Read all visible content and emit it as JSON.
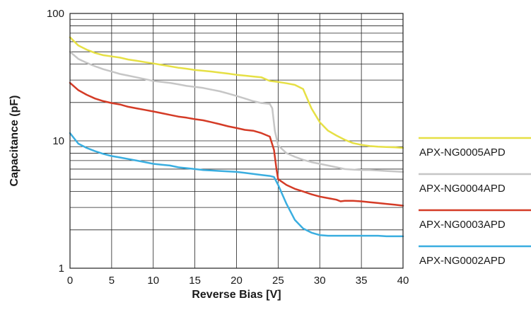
{
  "chart_data": {
    "type": "line",
    "xlabel": "Reverse Bias [V]",
    "ylabel": "Capacitance (pF)",
    "xlim": [
      0,
      40
    ],
    "ylim": [
      1,
      100
    ],
    "yscale": "log",
    "xticks": [
      0,
      5,
      10,
      15,
      20,
      25,
      30,
      35,
      40
    ],
    "xtick_labels": [
      "0",
      "5",
      "10",
      "15",
      "20",
      "25",
      "30",
      "35",
      "40"
    ],
    "ytick_labels": [
      "1",
      "10",
      "100"
    ],
    "grid": true,
    "legend_position": "right",
    "series": [
      {
        "name": "APX-NG0005APD",
        "color": "#e6e045",
        "x": [
          0,
          1,
          2,
          3,
          4,
          5,
          6,
          7,
          8,
          9,
          10,
          11,
          12,
          13,
          14,
          15,
          16,
          17,
          18,
          19,
          20,
          21,
          22,
          23,
          24,
          25,
          26,
          27,
          28,
          29,
          30,
          31,
          32,
          33,
          34,
          35,
          36,
          37,
          38,
          39,
          40
        ],
        "y": [
          65,
          56,
          52,
          49,
          47,
          46,
          45,
          43.5,
          42.5,
          41.5,
          40.5,
          39.5,
          38.5,
          37.5,
          36.8,
          36,
          35.5,
          35,
          34.3,
          33.7,
          33,
          32.5,
          32,
          31.5,
          29.5,
          29,
          28.3,
          27.5,
          25.5,
          18,
          14,
          12,
          11,
          10.2,
          9.6,
          9.3,
          9.1,
          9.0,
          8.95,
          8.9,
          8.8
        ]
      },
      {
        "name": "APX-NG0004APD",
        "color": "#c6c6c6",
        "x": [
          0,
          1,
          2,
          3,
          4,
          5,
          6,
          7,
          8,
          9,
          10,
          11,
          12,
          13,
          14,
          15,
          16,
          17,
          18,
          19,
          20,
          21,
          22,
          23,
          24,
          24.3,
          24.6,
          25,
          26,
          27,
          28,
          29,
          30,
          31,
          32,
          33,
          34,
          35,
          36,
          37,
          38,
          39,
          40
        ],
        "y": [
          50,
          44,
          41,
          38.5,
          36.5,
          35,
          33.5,
          32.5,
          31.5,
          30.5,
          29.5,
          29,
          28.5,
          27.8,
          27,
          26.5,
          26,
          25.2,
          24.5,
          23.5,
          22.5,
          21.5,
          20.5,
          19.8,
          19.5,
          18,
          12,
          9.2,
          8.0,
          7.5,
          7.1,
          6.8,
          6.6,
          6.4,
          6.2,
          6.0,
          5.95,
          5.9,
          5.9,
          5.85,
          5.8,
          5.75,
          5.7
        ]
      },
      {
        "name": "APX-NG0003APD",
        "color": "#d43b26",
        "x": [
          0,
          1,
          2,
          3,
          4,
          5,
          6,
          7,
          8,
          9,
          10,
          11,
          12,
          13,
          14,
          15,
          16,
          17,
          18,
          19,
          20,
          21,
          22,
          23,
          24,
          24.5,
          24.8,
          25,
          26,
          27,
          28,
          29,
          30,
          31,
          32,
          32.5,
          33,
          34,
          35,
          36,
          37,
          38,
          39,
          40
        ],
        "y": [
          28.5,
          25,
          23,
          21.5,
          20.5,
          19.8,
          19.3,
          18.5,
          18,
          17.5,
          17,
          16.5,
          16,
          15.5,
          15.2,
          14.8,
          14.5,
          14,
          13.5,
          13,
          12.6,
          12.2,
          12.0,
          11.5,
          10.8,
          8.5,
          6,
          5.0,
          4.5,
          4.2,
          4.0,
          3.8,
          3.65,
          3.55,
          3.45,
          3.35,
          3.38,
          3.38,
          3.35,
          3.3,
          3.25,
          3.2,
          3.15,
          3.1
        ]
      },
      {
        "name": "APX-NG0002APD",
        "color": "#3aaee0",
        "x": [
          0,
          1,
          2,
          3,
          4,
          5,
          6,
          7,
          8,
          9,
          10,
          11,
          12,
          13,
          14,
          15,
          16,
          17,
          18,
          19,
          20,
          21,
          22,
          23,
          24,
          24.5,
          25,
          26,
          27,
          28,
          29,
          30,
          31,
          32,
          33,
          34,
          35,
          36,
          37,
          38,
          39,
          40
        ],
        "y": [
          11.5,
          9.5,
          8.8,
          8.3,
          7.9,
          7.6,
          7.4,
          7.2,
          7.0,
          6.8,
          6.6,
          6.5,
          6.4,
          6.2,
          6.1,
          6.0,
          5.9,
          5.85,
          5.8,
          5.75,
          5.7,
          5.6,
          5.5,
          5.4,
          5.3,
          5.2,
          4.5,
          3.2,
          2.4,
          2.05,
          1.9,
          1.82,
          1.8,
          1.8,
          1.8,
          1.8,
          1.8,
          1.8,
          1.8,
          1.78,
          1.78,
          1.78
        ]
      }
    ]
  }
}
